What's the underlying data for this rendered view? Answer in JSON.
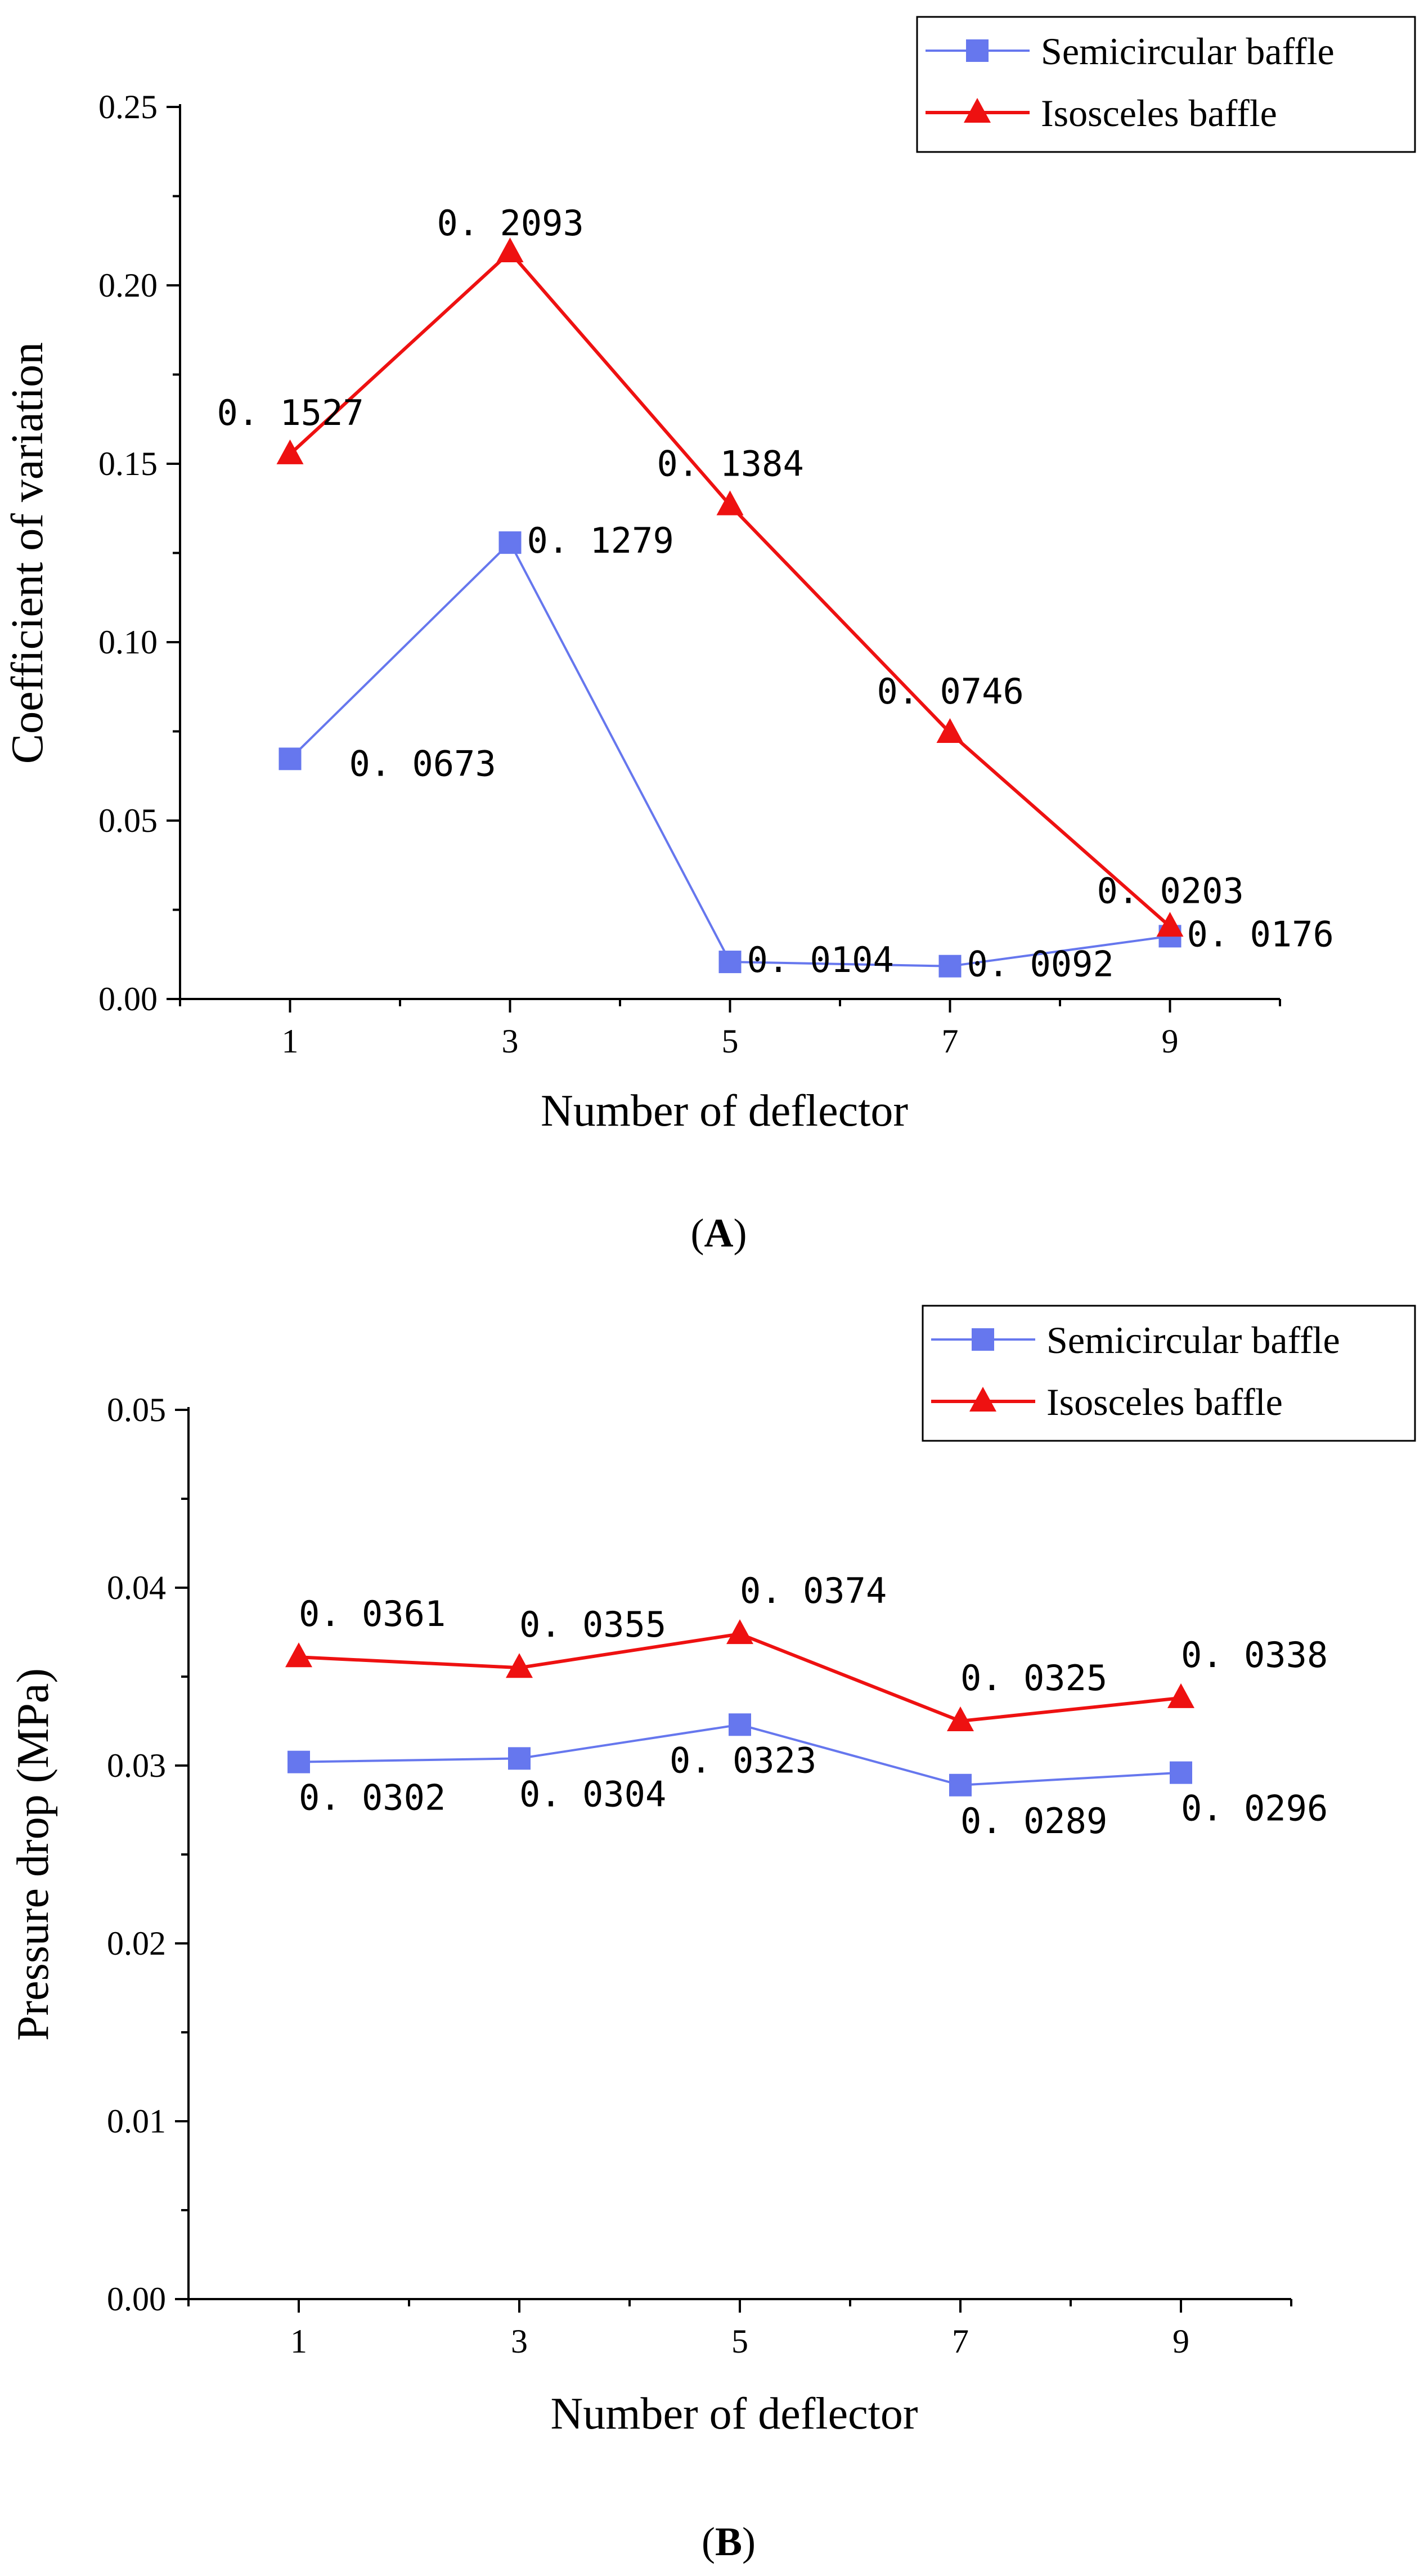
{
  "chart_data": [
    {
      "type": "line",
      "panel_label": "A",
      "xlabel": "Number of deflector",
      "ylabel": "Coefficient of variation",
      "x": [
        1,
        3,
        5,
        7,
        9
      ],
      "x_tick_labels": [
        "1",
        "3",
        "5",
        "7",
        "9"
      ],
      "ylim": [
        0,
        0.25
      ],
      "y_ticks": [
        0.0,
        0.05,
        0.1,
        0.15,
        0.2,
        0.25
      ],
      "y_tick_labels": [
        "0.00",
        "0.05",
        "0.10",
        "0.15",
        "0.20",
        "0.25"
      ],
      "grid": false,
      "legend_position": "top-right",
      "series": [
        {
          "name": "Semicircular baffle",
          "marker": "square",
          "color": "#6677ee",
          "values": [
            0.0673,
            0.1279,
            0.0104,
            0.0092,
            0.0176
          ],
          "labels": [
            "0. 0673",
            "0. 1279",
            "0. 0104",
            "0. 0092",
            "0. 0176"
          ]
        },
        {
          "name": "Isosceles baffle",
          "marker": "triangle",
          "color": "#ee1111",
          "values": [
            0.1527,
            0.2093,
            0.1384,
            0.0746,
            0.0203
          ],
          "labels": [
            "0. 1527",
            "0. 2093",
            "0. 1384",
            "0. 0746",
            "0. 0203"
          ]
        }
      ]
    },
    {
      "type": "line",
      "panel_label": "B",
      "xlabel": "Number of deflector",
      "ylabel": "Pressure drop (MPa)",
      "x": [
        1,
        3,
        5,
        7,
        9
      ],
      "x_tick_labels": [
        "1",
        "3",
        "5",
        "7",
        "9"
      ],
      "ylim": [
        0,
        0.05
      ],
      "y_ticks": [
        0.0,
        0.01,
        0.02,
        0.03,
        0.04,
        0.05
      ],
      "y_tick_labels": [
        "0.00",
        "0.01",
        "0.02",
        "0.03",
        "0.04",
        "0.05"
      ],
      "grid": false,
      "legend_position": "top-right",
      "series": [
        {
          "name": "Semicircular baffle",
          "marker": "square",
          "color": "#6677ee",
          "values": [
            0.0302,
            0.0304,
            0.0323,
            0.0289,
            0.0296
          ],
          "labels": [
            "0. 0302",
            "0. 0304",
            "0. 0323",
            "0. 0289",
            "0. 0296"
          ]
        },
        {
          "name": "Isosceles baffle",
          "marker": "triangle",
          "color": "#ee1111",
          "values": [
            0.0361,
            0.0355,
            0.0374,
            0.0325,
            0.0338
          ],
          "labels": [
            "0. 0361",
            "0. 0355",
            "0. 0374",
            "0. 0325",
            "0. 0338"
          ]
        }
      ]
    }
  ]
}
